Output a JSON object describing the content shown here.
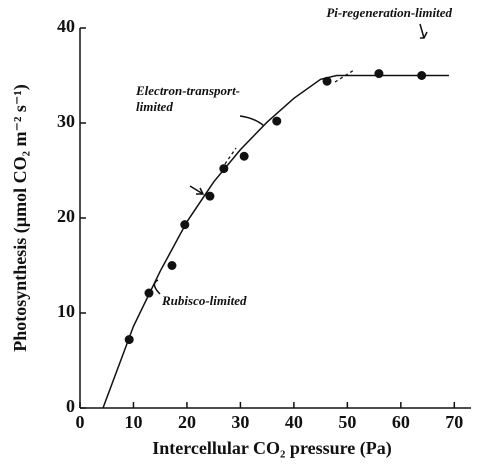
{
  "chart_data": {
    "type": "scatter",
    "x_label": "Intercellular CO₂ pressure (Pa)",
    "y_label": "Photosynthesis (µmol CO₂ m⁻² s⁻¹)",
    "x": [
      9.2,
      12.9,
      17.2,
      19.6,
      24.3,
      26.9,
      30.7,
      36.8,
      46.2,
      55.9,
      63.9
    ],
    "values": [
      7.2,
      12.1,
      15,
      19.3,
      22.3,
      25.2,
      26.5,
      30.2,
      34.4,
      35.2,
      35
    ],
    "color": "#111111",
    "curve": {
      "x": [
        4.3,
        10,
        15,
        20,
        25,
        30,
        35,
        40,
        45,
        48,
        69
      ],
      "values": [
        0,
        8.6,
        14.4,
        19.6,
        23.8,
        27.2,
        30.1,
        32.6,
        34.6,
        35,
        35
      ]
    },
    "annotations": [
      "Pi-regeneration-limited",
      "Electron-transport-",
      "limited",
      "Rubisco-limited"
    ],
    "xlim": [
      0,
      72
    ],
    "ylim": [
      0,
      40
    ],
    "xticks": [
      0,
      10,
      20,
      30,
      40,
      50,
      60,
      70
    ],
    "yticks": [
      0,
      10,
      20,
      30,
      40
    ]
  }
}
